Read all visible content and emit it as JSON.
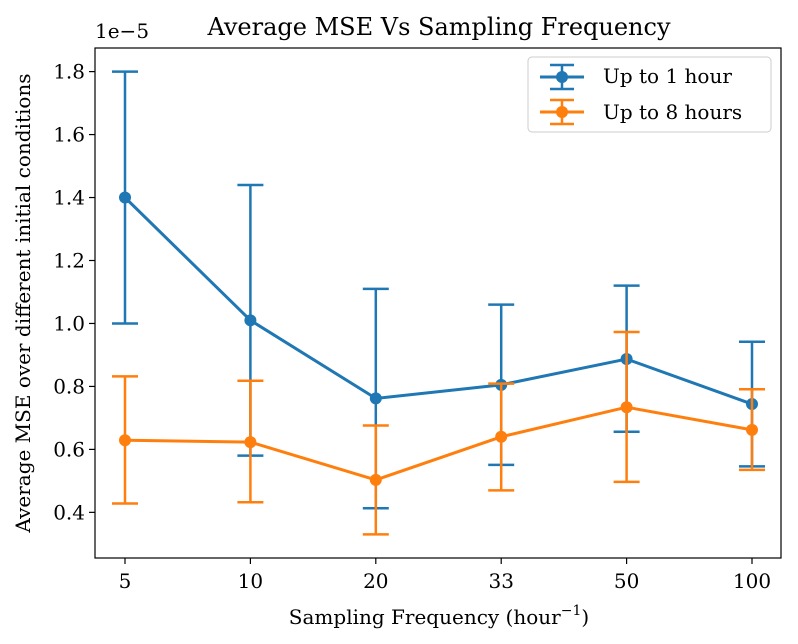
{
  "chart_data": {
    "type": "line",
    "title": "Average MSE Vs Sampling Frequency",
    "xlabel": "Sampling Frequency (hour",
    "xlabel_sup": "−1",
    "xlabel_suffix": ")",
    "ylabel": "Average MSE over different initial conditions",
    "y_scale_label": "1e−5",
    "categories": [
      "5",
      "10",
      "20",
      "33",
      "50",
      "100"
    ],
    "ylim": [
      0.255,
      1.875
    ],
    "yticks": [
      0.4,
      0.6,
      0.8,
      1.0,
      1.2,
      1.4,
      1.6,
      1.8
    ],
    "ytick_labels": [
      "0.4",
      "0.6",
      "0.8",
      "1.0",
      "1.2",
      "1.4",
      "1.6",
      "1.8"
    ],
    "legend_position": "top-right",
    "series": [
      {
        "name": "Up to 1 hour",
        "color": "#1f77b4",
        "values": [
          1.4,
          1.01,
          0.762,
          0.805,
          0.887,
          0.744
        ],
        "err_low": [
          1.0,
          0.58,
          0.413,
          0.551,
          0.656,
          0.546
        ],
        "err_high": [
          1.8,
          1.44,
          1.11,
          1.06,
          1.12,
          0.942
        ]
      },
      {
        "name": "Up to 8 hours",
        "color": "#ff7f0e",
        "values": [
          0.629,
          0.623,
          0.503,
          0.64,
          0.734,
          0.662
        ],
        "err_low": [
          0.428,
          0.432,
          0.33,
          0.47,
          0.497,
          0.535
        ],
        "err_high": [
          0.832,
          0.818,
          0.676,
          0.809,
          0.973,
          0.791
        ]
      }
    ]
  }
}
